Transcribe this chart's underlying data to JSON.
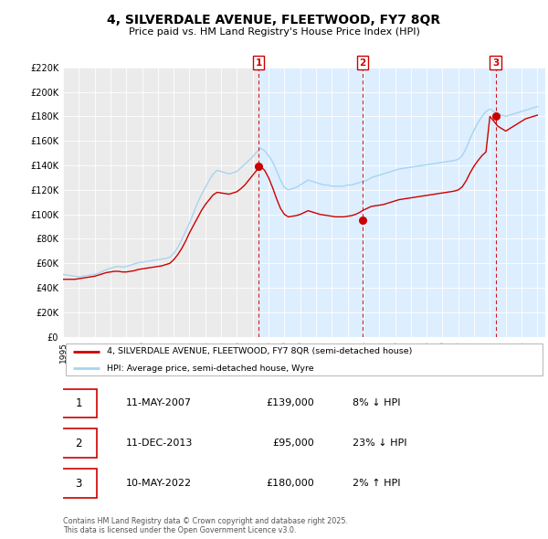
{
  "title": "4, SILVERDALE AVENUE, FLEETWOOD, FY7 8QR",
  "subtitle": "Price paid vs. HM Land Registry's House Price Index (HPI)",
  "ylim": [
    0,
    220000
  ],
  "yticks": [
    0,
    20000,
    40000,
    60000,
    80000,
    100000,
    120000,
    140000,
    160000,
    180000,
    200000,
    220000
  ],
  "ytick_labels": [
    "£0",
    "£20K",
    "£40K",
    "£60K",
    "£80K",
    "£100K",
    "£120K",
    "£140K",
    "£160K",
    "£180K",
    "£200K",
    "£220K"
  ],
  "background_color": "#ffffff",
  "plot_bg_color": "#ebebeb",
  "grid_color": "#ffffff",
  "hpi_color": "#a8d4f0",
  "price_color": "#cc0000",
  "sale_dot_color": "#cc0000",
  "vline_color": "#cc0000",
  "marker_border": "#cc0000",
  "shade_color": "#ddeeff",
  "legend_label_price": "4, SILVERDALE AVENUE, FLEETWOOD, FY7 8QR (semi-detached house)",
  "legend_label_hpi": "HPI: Average price, semi-detached house, Wyre",
  "sale_events": [
    {
      "num": 1,
      "date": "11-MAY-2007",
      "price": "£139,000",
      "pct": "8%",
      "dir": "↓",
      "x_year": 2007.36,
      "y_price": 139000
    },
    {
      "num": 2,
      "date": "11-DEC-2013",
      "price": "£95,000",
      "pct": "23%",
      "dir": "↓",
      "x_year": 2013.94,
      "y_price": 95000
    },
    {
      "num": 3,
      "date": "10-MAY-2022",
      "price": "£180,000",
      "pct": "2%",
      "dir": "↑",
      "x_year": 2022.36,
      "y_price": 180000
    }
  ],
  "footnote": "Contains HM Land Registry data © Crown copyright and database right 2025.\nThis data is licensed under the Open Government Licence v3.0.",
  "hpi_data": {
    "years": [
      1995.0,
      1995.25,
      1995.5,
      1995.75,
      1996.0,
      1996.25,
      1996.5,
      1996.75,
      1997.0,
      1997.25,
      1997.5,
      1997.75,
      1998.0,
      1998.25,
      1998.5,
      1998.75,
      1999.0,
      1999.25,
      1999.5,
      1999.75,
      2000.0,
      2000.25,
      2000.5,
      2000.75,
      2001.0,
      2001.25,
      2001.5,
      2001.75,
      2002.0,
      2002.25,
      2002.5,
      2002.75,
      2003.0,
      2003.25,
      2003.5,
      2003.75,
      2004.0,
      2004.25,
      2004.5,
      2004.75,
      2005.0,
      2005.25,
      2005.5,
      2005.75,
      2006.0,
      2006.25,
      2006.5,
      2006.75,
      2007.0,
      2007.25,
      2007.5,
      2007.75,
      2008.0,
      2008.25,
      2008.5,
      2008.75,
      2009.0,
      2009.25,
      2009.5,
      2009.75,
      2010.0,
      2010.25,
      2010.5,
      2010.75,
      2011.0,
      2011.25,
      2011.5,
      2011.75,
      2012.0,
      2012.25,
      2012.5,
      2012.75,
      2013.0,
      2013.25,
      2013.5,
      2013.75,
      2014.0,
      2014.25,
      2014.5,
      2014.75,
      2015.0,
      2015.25,
      2015.5,
      2015.75,
      2016.0,
      2016.25,
      2016.5,
      2016.75,
      2017.0,
      2017.25,
      2017.5,
      2017.75,
      2018.0,
      2018.25,
      2018.5,
      2018.75,
      2019.0,
      2019.25,
      2019.5,
      2019.75,
      2020.0,
      2020.25,
      2020.5,
      2020.75,
      2021.0,
      2021.25,
      2021.5,
      2021.75,
      2022.0,
      2022.25,
      2022.5,
      2022.75,
      2023.0,
      2023.25,
      2023.5,
      2023.75,
      2024.0,
      2024.25,
      2024.5,
      2024.75,
      2025.0
    ],
    "values": [
      51000,
      50500,
      50000,
      49500,
      49000,
      49500,
      50000,
      50500,
      51000,
      52000,
      53500,
      55000,
      56000,
      57000,
      57500,
      57000,
      57500,
      58500,
      59500,
      60500,
      61000,
      61500,
      62000,
      62500,
      63000,
      63500,
      64000,
      65000,
      68000,
      73000,
      79000,
      86000,
      93000,
      101000,
      109000,
      116000,
      122000,
      128000,
      133000,
      136000,
      135000,
      134000,
      133000,
      134000,
      135000,
      138000,
      141000,
      144000,
      147000,
      151000,
      154000,
      152000,
      148000,
      143000,
      136000,
      128000,
      122000,
      120000,
      121000,
      122000,
      124000,
      126000,
      128000,
      127000,
      126000,
      125000,
      124000,
      124000,
      123000,
      123000,
      123000,
      123000,
      124000,
      124000,
      125000,
      126000,
      127000,
      128000,
      130000,
      131000,
      132000,
      133000,
      134000,
      135000,
      136000,
      137000,
      137500,
      138000,
      138500,
      139000,
      139500,
      140000,
      140500,
      141000,
      141500,
      142000,
      142500,
      143000,
      143500,
      144000,
      145000,
      148000,
      154000,
      162000,
      169000,
      175000,
      180000,
      184000,
      186000,
      184000,
      182000,
      181000,
      180000,
      181000,
      182000,
      183000,
      184000,
      185000,
      186000,
      187000,
      188000
    ]
  },
  "price_data": {
    "years": [
      1995.0,
      1995.25,
      1995.5,
      1995.75,
      1996.0,
      1996.25,
      1996.5,
      1996.75,
      1997.0,
      1997.25,
      1997.5,
      1997.75,
      1998.0,
      1998.25,
      1998.5,
      1998.75,
      1999.0,
      1999.25,
      1999.5,
      1999.75,
      2000.0,
      2000.25,
      2000.5,
      2000.75,
      2001.0,
      2001.25,
      2001.5,
      2001.75,
      2002.0,
      2002.25,
      2002.5,
      2002.75,
      2003.0,
      2003.25,
      2003.5,
      2003.75,
      2004.0,
      2004.25,
      2004.5,
      2004.75,
      2005.0,
      2005.25,
      2005.5,
      2005.75,
      2006.0,
      2006.25,
      2006.5,
      2006.75,
      2007.0,
      2007.25,
      2007.5,
      2007.75,
      2008.0,
      2008.25,
      2008.5,
      2008.75,
      2009.0,
      2009.25,
      2009.5,
      2009.75,
      2010.0,
      2010.25,
      2010.5,
      2010.75,
      2011.0,
      2011.25,
      2011.5,
      2011.75,
      2012.0,
      2012.25,
      2012.5,
      2012.75,
      2013.0,
      2013.25,
      2013.5,
      2013.75,
      2014.0,
      2014.25,
      2014.5,
      2014.75,
      2015.0,
      2015.25,
      2015.5,
      2015.75,
      2016.0,
      2016.25,
      2016.5,
      2016.75,
      2017.0,
      2017.25,
      2017.5,
      2017.75,
      2018.0,
      2018.25,
      2018.5,
      2018.75,
      2019.0,
      2019.25,
      2019.5,
      2019.75,
      2020.0,
      2020.25,
      2020.5,
      2020.75,
      2021.0,
      2021.25,
      2021.5,
      2021.75,
      2022.0,
      2022.25,
      2022.5,
      2022.75,
      2023.0,
      2023.25,
      2023.5,
      2023.75,
      2024.0,
      2024.25,
      2024.5,
      2024.75,
      2025.0
    ],
    "values": [
      47000,
      47000,
      47000,
      47000,
      47500,
      48000,
      48500,
      49000,
      49500,
      50500,
      51500,
      52500,
      53000,
      53500,
      53500,
      53000,
      53000,
      53500,
      54000,
      55000,
      55500,
      56000,
      56500,
      57000,
      57500,
      58000,
      59000,
      60000,
      63000,
      67000,
      72000,
      78000,
      85000,
      91000,
      97000,
      103000,
      108000,
      112000,
      116000,
      118000,
      117500,
      117000,
      116500,
      117500,
      118500,
      121000,
      124000,
      128000,
      132000,
      136000,
      139000,
      136000,
      130000,
      122000,
      113000,
      105000,
      100000,
      98000,
      98500,
      99000,
      100000,
      101500,
      103000,
      102000,
      101000,
      100000,
      99500,
      99000,
      98500,
      98000,
      98000,
      98000,
      98500,
      99000,
      100000,
      101500,
      103500,
      105000,
      106500,
      107000,
      107500,
      108000,
      109000,
      110000,
      111000,
      112000,
      112500,
      113000,
      113500,
      114000,
      114500,
      115000,
      115500,
      116000,
      116500,
      117000,
      117500,
      118000,
      118500,
      119000,
      120000,
      122500,
      127500,
      134000,
      139500,
      144000,
      148000,
      151000,
      180000,
      176000,
      172000,
      170000,
      168000,
      170000,
      172000,
      174000,
      176000,
      178000,
      179000,
      180000,
      181000
    ]
  },
  "xlim": [
    1995,
    2025.5
  ],
  "xticks": [
    1995,
    1996,
    1997,
    1998,
    1999,
    2000,
    2001,
    2002,
    2003,
    2004,
    2005,
    2006,
    2007,
    2008,
    2009,
    2010,
    2011,
    2012,
    2013,
    2014,
    2015,
    2016,
    2017,
    2018,
    2019,
    2020,
    2021,
    2022,
    2023,
    2024,
    2025
  ]
}
